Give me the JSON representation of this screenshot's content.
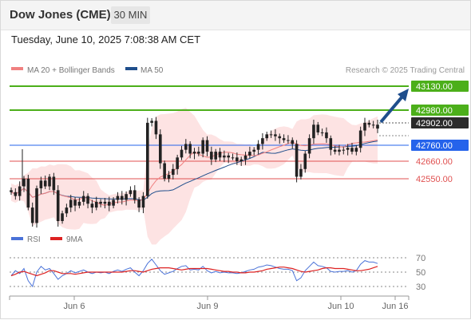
{
  "header": {
    "title": "Dow Jones (CME)",
    "timeframe": "30 MIN",
    "timestamp": "Tuesday, June 10, 2025 7:08:38 AM CET"
  },
  "chart_data": [
    {
      "type": "line",
      "panel": "price",
      "legend": [
        {
          "name": "MA 20 + Bollinger Bands",
          "color": "#f08080"
        },
        {
          "name": "MA 50",
          "color": "#1f4e8c"
        }
      ],
      "credit": "Research © 2025 Trading Central",
      "ylim": [
        42370,
        43160
      ],
      "x_ticks": [
        "Jun 6",
        "Jun 9",
        "Jun 10",
        "Jun 16"
      ],
      "levels": [
        {
          "value": "43130.00",
          "type": "target",
          "color": "#4caf1a"
        },
        {
          "value": "42980.00",
          "type": "resistance",
          "color": "#4caf1a"
        },
        {
          "value": "42902.00",
          "type": "last",
          "color": "#2b2b2b"
        },
        {
          "value": "42760.00",
          "type": "pivot",
          "color": "#2563eb"
        },
        {
          "value": "42660.00",
          "type": "support",
          "color": "#e05050"
        },
        {
          "value": "42550.00",
          "type": "support",
          "color": "#e05050"
        }
      ],
      "close": [
        42580,
        42560,
        42610,
        42650,
        42500,
        42420,
        42600,
        42640,
        42610,
        42660,
        42590,
        42430,
        42470,
        42500,
        42540,
        42510,
        42530,
        42560,
        42520,
        42500,
        42530,
        42520,
        42530,
        42510,
        42540,
        42560,
        42540,
        42570,
        42590,
        42540,
        42500,
        42560,
        42940,
        42950,
        42880,
        42730,
        42650,
        42670,
        42700,
        42760,
        42800,
        42830,
        42780,
        42790,
        42780,
        42850,
        42790,
        42750,
        42790,
        42760,
        42770,
        42760,
        42760,
        42740,
        42750,
        42770,
        42790,
        42800,
        42830,
        42860,
        42880,
        42880,
        42870,
        42860,
        42850,
        42850,
        42830,
        42660,
        42700,
        42780,
        42860,
        42930,
        42890,
        42890,
        42860,
        42800,
        42790,
        42800,
        42800,
        42810,
        42790,
        42810,
        42900,
        42940,
        42930,
        42930,
        42910
      ]
    },
    {
      "type": "line",
      "panel": "oscillator",
      "series": [
        {
          "name": "RSI",
          "color": "#4a72d8"
        },
        {
          "name": "9MA",
          "color": "#dd2222"
        }
      ],
      "ylim": [
        20,
        80
      ],
      "levels": [
        "70",
        "50",
        "30"
      ],
      "rsi": [
        45,
        52,
        48,
        55,
        38,
        30,
        50,
        58,
        53,
        55,
        48,
        40,
        45,
        48,
        52,
        49,
        51,
        53,
        50,
        48,
        50,
        49,
        50,
        48,
        51,
        53,
        51,
        54,
        56,
        50,
        45,
        52,
        62,
        68,
        60,
        52,
        47,
        49,
        51,
        55,
        58,
        59,
        53,
        54,
        53,
        58,
        52,
        49,
        51,
        49,
        50,
        49,
        49,
        48,
        49,
        51,
        53,
        54,
        57,
        58,
        60,
        59,
        57,
        55,
        54,
        54,
        52,
        38,
        42,
        52,
        58,
        64,
        59,
        58,
        56,
        51,
        50,
        51,
        51,
        52,
        50,
        52,
        61,
        66,
        64,
        64,
        62
      ],
      "ma9": [
        45,
        47,
        50,
        51,
        49,
        47,
        45,
        47,
        49,
        52,
        52,
        50,
        48,
        48,
        48,
        47,
        48,
        49,
        50,
        50,
        50,
        50,
        50,
        50,
        50,
        50,
        50,
        51,
        52,
        52,
        51,
        50,
        52,
        54,
        55,
        56,
        56,
        56,
        55,
        54,
        53,
        54,
        55,
        55,
        55,
        55,
        55,
        54,
        53,
        52,
        51,
        51,
        50,
        50,
        49,
        49,
        50,
        50,
        51,
        52,
        54,
        55,
        56,
        57,
        57,
        56,
        55,
        53,
        51,
        50,
        51,
        52,
        53,
        55,
        56,
        56,
        55,
        55,
        55,
        54,
        53,
        52,
        52,
        53,
        54,
        56,
        58
      ]
    }
  ]
}
